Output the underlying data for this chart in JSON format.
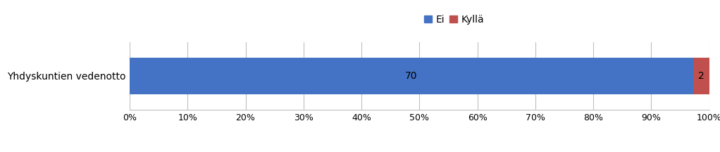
{
  "category": "Yhdyskuntien vedenotto",
  "ei_value": 70,
  "kylla_value": 2,
  "ei_color": "#4472C4",
  "kylla_color": "#C0504D",
  "legend_labels": [
    "Ei",
    "Kyllä"
  ],
  "bar_height": 0.6,
  "xlim": [
    0,
    1
  ],
  "xticks": [
    0,
    0.1,
    0.2,
    0.3,
    0.4,
    0.5,
    0.6,
    0.7,
    0.8,
    0.9,
    1.0
  ],
  "xtick_labels": [
    "0%",
    "10%",
    "20%",
    "30%",
    "40%",
    "50%",
    "60%",
    "70%",
    "80%",
    "90%",
    "100%"
  ],
  "background_color": "#ffffff",
  "grid_color": "#bfbfbf",
  "text_color": "#000000",
  "label_fontsize": 10,
  "legend_fontsize": 10,
  "tick_fontsize": 9,
  "figsize": [
    10.22,
    2.16
  ],
  "dpi": 100
}
